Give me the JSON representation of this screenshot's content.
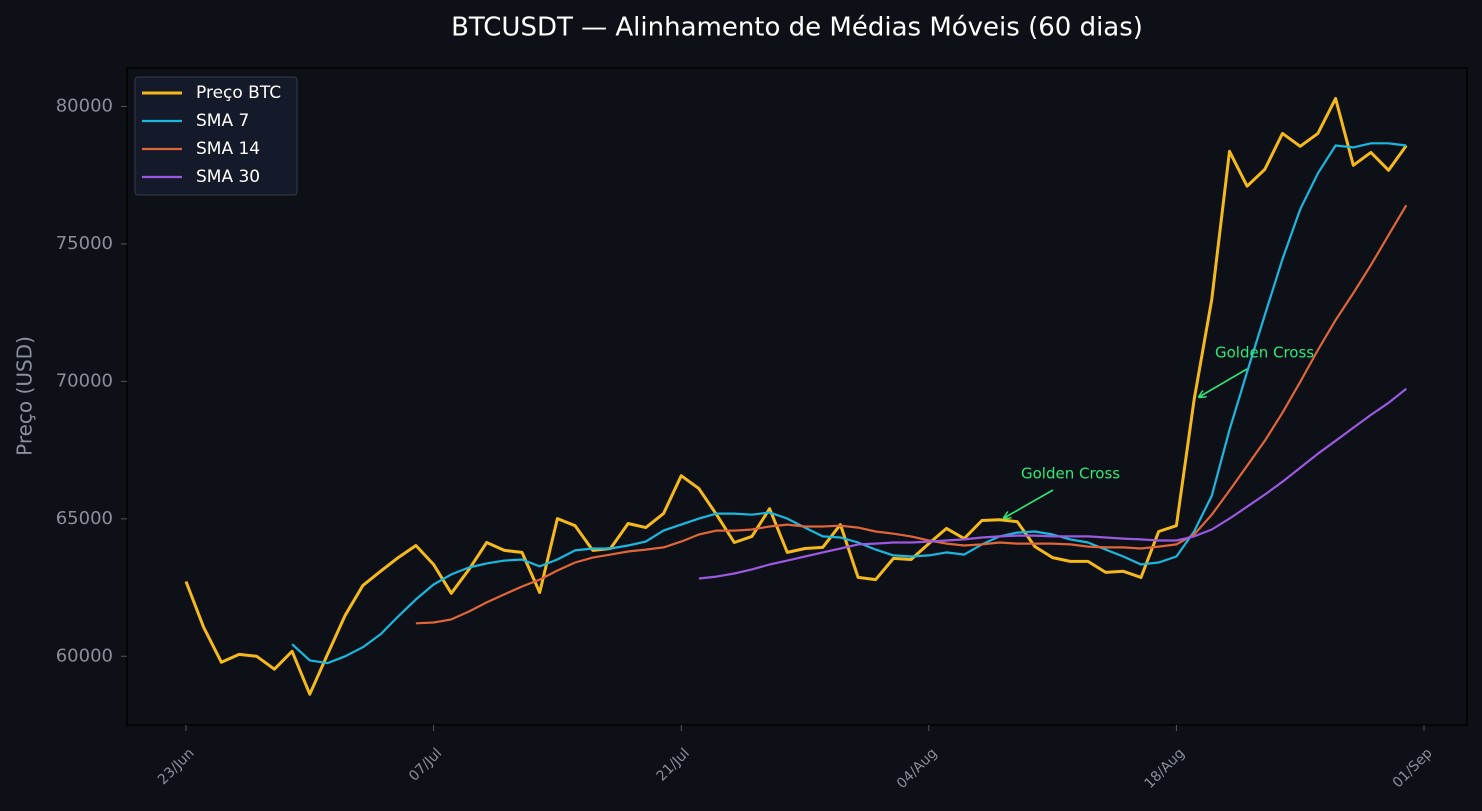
{
  "chart_data": {
    "type": "line",
    "title": "BTCUSDT — Alinhamento de Médias Móveis (60 dias)",
    "y_label": "Preço (USD)",
    "categories": [
      "23/Jun",
      null,
      null,
      null,
      null,
      null,
      null,
      null,
      null,
      null,
      null,
      null,
      null,
      null,
      "07/Jul",
      null,
      null,
      null,
      null,
      null,
      null,
      null,
      null,
      null,
      null,
      null,
      null,
      null,
      "21/Jul",
      null,
      null,
      null,
      null,
      null,
      null,
      null,
      null,
      null,
      null,
      null,
      null,
      null,
      "04/Aug",
      null,
      null,
      null,
      null,
      null,
      null,
      null,
      null,
      null,
      null,
      null,
      null,
      null,
      "18/Aug",
      null,
      null,
      null,
      null,
      null,
      null,
      null,
      null,
      null,
      null,
      null,
      null,
      null,
      "01/Sep"
    ],
    "series": [
      {
        "name": "Preço BTC",
        "color": "#f5b91c",
        "values": [
          62720,
          61050,
          59780,
          60070,
          60000,
          59530,
          60180,
          58620,
          60070,
          61490,
          62580,
          63090,
          63590,
          64030,
          63340,
          62290,
          63160,
          64140,
          63850,
          63780,
          62320,
          65010,
          64750,
          63850,
          63920,
          64830,
          64680,
          65190,
          66570,
          66100,
          65150,
          64140,
          64360,
          65370,
          63780,
          63920,
          63960,
          64790,
          62870,
          62790,
          63560,
          63520,
          64100,
          64650,
          64280,
          64940,
          64970,
          64900,
          63990,
          63590,
          63450,
          63450,
          63050,
          63090,
          62870,
          64540,
          64750,
          69330,
          72990,
          78370,
          77100,
          77710,
          79020,
          78550,
          79020,
          80290,
          77860,
          78330,
          77680,
          78580,
          null
        ]
      },
      {
        "name": "SMA 7",
        "color": "#1ab8e0",
        "values": [
          null,
          null,
          null,
          null,
          null,
          null,
          60440,
          59850,
          59750,
          60000,
          60330,
          60800,
          61450,
          62070,
          62610,
          62980,
          63230,
          63380,
          63480,
          63520,
          63270,
          63520,
          63850,
          63920,
          63920,
          64030,
          64170,
          64570,
          64790,
          65010,
          65190,
          65190,
          65150,
          65230,
          65010,
          64680,
          64360,
          64320,
          64140,
          63880,
          63670,
          63630,
          63670,
          63780,
          63700,
          64070,
          64360,
          64500,
          64540,
          64430,
          64250,
          64140,
          63880,
          63630,
          63340,
          63410,
          63630,
          64540,
          65840,
          68240,
          70340,
          72410,
          74450,
          76260,
          77570,
          78580,
          78510,
          78660,
          78660,
          78580,
          null
        ]
      },
      {
        "name": "SMA 14",
        "color": "#e0663a",
        "values": [
          null,
          null,
          null,
          null,
          null,
          null,
          null,
          null,
          null,
          null,
          null,
          null,
          null,
          61200,
          61230,
          61340,
          61630,
          61960,
          62250,
          62540,
          62790,
          63120,
          63410,
          63590,
          63700,
          63810,
          63880,
          63960,
          64170,
          64430,
          64570,
          64570,
          64610,
          64720,
          64790,
          64720,
          64720,
          64750,
          64680,
          64540,
          64460,
          64360,
          64210,
          64100,
          64030,
          64070,
          64140,
          64100,
          64100,
          64100,
          64070,
          63990,
          63960,
          63960,
          63920,
          63990,
          64070,
          64430,
          65150,
          66030,
          66930,
          67840,
          68860,
          69980,
          71140,
          72230,
          73210,
          74230,
          75320,
          76410,
          null
        ]
      },
      {
        "name": "SMA 30",
        "color": "#9b59e0",
        "values": [
          null,
          null,
          null,
          null,
          null,
          null,
          null,
          null,
          null,
          null,
          null,
          null,
          null,
          null,
          null,
          null,
          null,
          null,
          null,
          null,
          null,
          null,
          null,
          null,
          null,
          null,
          null,
          null,
          null,
          62830,
          62900,
          63010,
          63160,
          63340,
          63480,
          63630,
          63780,
          63920,
          64070,
          64100,
          64140,
          64140,
          64170,
          64210,
          64250,
          64320,
          64360,
          64390,
          64390,
          64360,
          64360,
          64360,
          64320,
          64280,
          64250,
          64210,
          64210,
          64360,
          64610,
          65010,
          65440,
          65880,
          66350,
          66860,
          67370,
          67840,
          68310,
          68780,
          69220,
          69730,
          null
        ]
      }
    ],
    "ylim": [
      57500,
      81400
    ],
    "yticks": [
      60000,
      65000,
      70000,
      75000,
      80000
    ],
    "legend": "upper-left",
    "annotations": [
      {
        "text": "Golden Cross",
        "color": "#2ee87a"
      },
      {
        "text": "Golden Cross",
        "color": "#2ee87a"
      }
    ]
  }
}
